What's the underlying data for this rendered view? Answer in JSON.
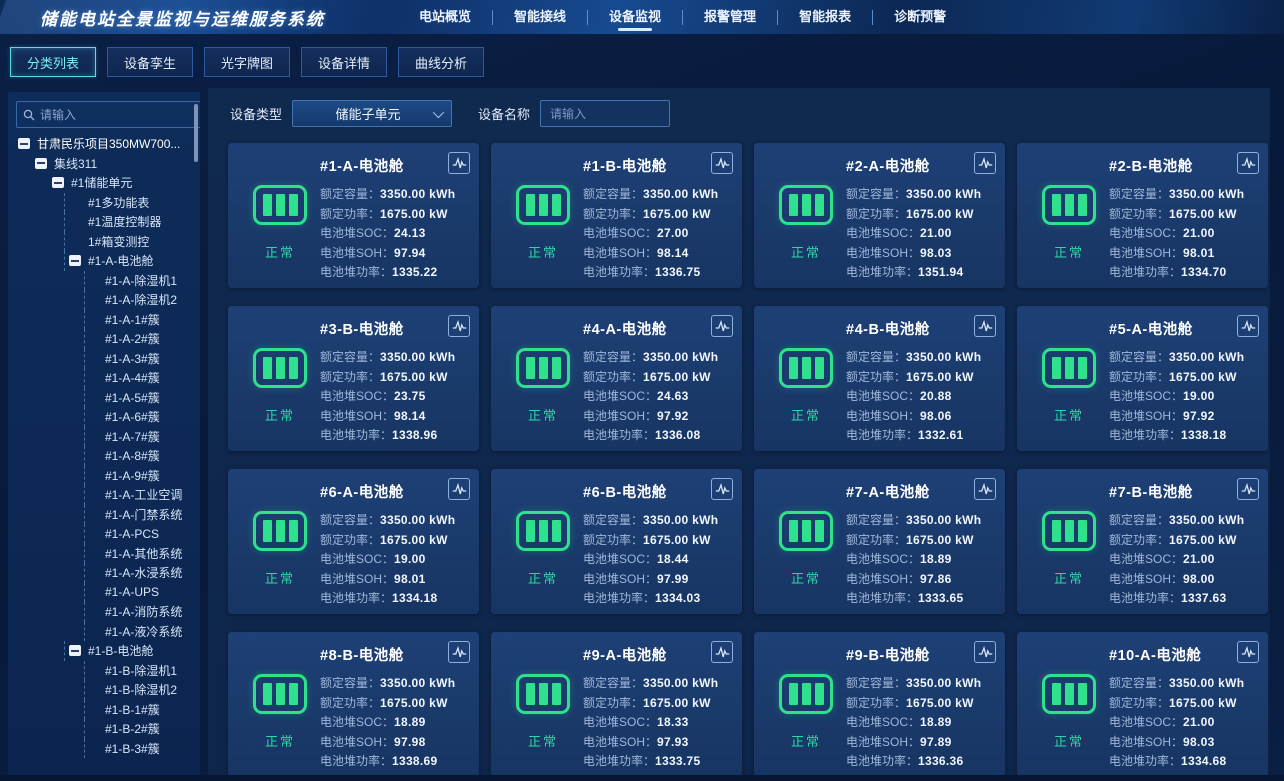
{
  "header": {
    "title": "储能电站全景监视与运维服务系统",
    "nav": [
      {
        "label": "电站概览",
        "active": false
      },
      {
        "label": "智能接线",
        "active": false
      },
      {
        "label": "设备监视",
        "active": true
      },
      {
        "label": "报警管理",
        "active": false
      },
      {
        "label": "智能报表",
        "active": false
      },
      {
        "label": "诊断预警",
        "active": false
      }
    ]
  },
  "tabs": [
    {
      "label": "分类列表",
      "active": true
    },
    {
      "label": "设备孪生",
      "active": false
    },
    {
      "label": "光字牌图",
      "active": false
    },
    {
      "label": "设备详情",
      "active": false
    },
    {
      "label": "曲线分析",
      "active": false
    }
  ],
  "sidebar": {
    "search_placeholder": "请输入",
    "tree": [
      {
        "label": "甘肃民乐项目350MW700...",
        "level": 0,
        "toggle": true
      },
      {
        "label": "集线311",
        "level": 1,
        "toggle": true
      },
      {
        "label": "#1储能单元",
        "level": 2,
        "toggle": true
      },
      {
        "label": "#1多功能表",
        "level": 3,
        "toggle": false
      },
      {
        "label": "#1温度控制器",
        "level": 3,
        "toggle": false
      },
      {
        "label": "1#箱变测控",
        "level": 3,
        "toggle": false
      },
      {
        "label": "#1-A-电池舱",
        "level": 3,
        "toggle": true
      },
      {
        "label": "#1-A-除湿机1",
        "level": 4,
        "toggle": false
      },
      {
        "label": "#1-A-除湿机2",
        "level": 4,
        "toggle": false
      },
      {
        "label": "#1-A-1#簇",
        "level": 4,
        "toggle": false
      },
      {
        "label": "#1-A-2#簇",
        "level": 4,
        "toggle": false
      },
      {
        "label": "#1-A-3#簇",
        "level": 4,
        "toggle": false
      },
      {
        "label": "#1-A-4#簇",
        "level": 4,
        "toggle": false
      },
      {
        "label": "#1-A-5#簇",
        "level": 4,
        "toggle": false
      },
      {
        "label": "#1-A-6#簇",
        "level": 4,
        "toggle": false
      },
      {
        "label": "#1-A-7#簇",
        "level": 4,
        "toggle": false
      },
      {
        "label": "#1-A-8#簇",
        "level": 4,
        "toggle": false
      },
      {
        "label": "#1-A-9#簇",
        "level": 4,
        "toggle": false
      },
      {
        "label": "#1-A-工业空调",
        "level": 4,
        "toggle": false
      },
      {
        "label": "#1-A-门禁系统",
        "level": 4,
        "toggle": false
      },
      {
        "label": "#1-A-PCS",
        "level": 4,
        "toggle": false
      },
      {
        "label": "#1-A-其他系统",
        "level": 4,
        "toggle": false
      },
      {
        "label": "#1-A-水浸系统",
        "level": 4,
        "toggle": false
      },
      {
        "label": "#1-A-UPS",
        "level": 4,
        "toggle": false
      },
      {
        "label": "#1-A-消防系统",
        "level": 4,
        "toggle": false
      },
      {
        "label": "#1-A-液冷系统",
        "level": 4,
        "toggle": false
      },
      {
        "label": "#1-B-电池舱",
        "level": 3,
        "toggle": true
      },
      {
        "label": "#1-B-除湿机1",
        "level": 4,
        "toggle": false
      },
      {
        "label": "#1-B-除湿机2",
        "level": 4,
        "toggle": false
      },
      {
        "label": "#1-B-1#簇",
        "level": 4,
        "toggle": false
      },
      {
        "label": "#1-B-2#簇",
        "level": 4,
        "toggle": false
      },
      {
        "label": "#1-B-3#簇",
        "level": 4,
        "toggle": false
      }
    ]
  },
  "filters": {
    "device_type_label": "设备类型",
    "device_type_value": "储能子单元",
    "device_name_label": "设备名称",
    "device_name_placeholder": "请输入"
  },
  "card_labels": {
    "capacity": "额定容量：",
    "rated_power": "额定功率：",
    "soc": "电池堆SOC：",
    "soh": "电池堆SOH：",
    "stack_power": "电池堆功率："
  },
  "cards": [
    {
      "title": "#1-A-电池舱",
      "capacity": "3350.00 kWh",
      "rated_power": "1675.00 kW",
      "soc": "24.13",
      "soh": "97.94",
      "stack_power": "1335.22",
      "status": "正常"
    },
    {
      "title": "#1-B-电池舱",
      "capacity": "3350.00 kWh",
      "rated_power": "1675.00 kW",
      "soc": "27.00",
      "soh": "98.14",
      "stack_power": "1336.75",
      "status": "正常"
    },
    {
      "title": "#2-A-电池舱",
      "capacity": "3350.00 kWh",
      "rated_power": "1675.00 kW",
      "soc": "21.00",
      "soh": "98.03",
      "stack_power": "1351.94",
      "status": "正常"
    },
    {
      "title": "#2-B-电池舱",
      "capacity": "3350.00 kWh",
      "rated_power": "1675.00 kW",
      "soc": "21.00",
      "soh": "98.01",
      "stack_power": "1334.70",
      "status": "正常"
    },
    {
      "title": "#3-B-电池舱",
      "capacity": "3350.00 kWh",
      "rated_power": "1675.00 kW",
      "soc": "23.75",
      "soh": "98.14",
      "stack_power": "1338.96",
      "status": "正常"
    },
    {
      "title": "#4-A-电池舱",
      "capacity": "3350.00 kWh",
      "rated_power": "1675.00 kW",
      "soc": "24.63",
      "soh": "97.92",
      "stack_power": "1336.08",
      "status": "正常"
    },
    {
      "title": "#4-B-电池舱",
      "capacity": "3350.00 kWh",
      "rated_power": "1675.00 kW",
      "soc": "20.88",
      "soh": "98.06",
      "stack_power": "1332.61",
      "status": "正常"
    },
    {
      "title": "#5-A-电池舱",
      "capacity": "3350.00 kWh",
      "rated_power": "1675.00 kW",
      "soc": "19.00",
      "soh": "97.92",
      "stack_power": "1338.18",
      "status": "正常"
    },
    {
      "title": "#6-A-电池舱",
      "capacity": "3350.00 kWh",
      "rated_power": "1675.00 kW",
      "soc": "19.00",
      "soh": "98.01",
      "stack_power": "1334.18",
      "status": "正常"
    },
    {
      "title": "#6-B-电池舱",
      "capacity": "3350.00 kWh",
      "rated_power": "1675.00 kW",
      "soc": "18.44",
      "soh": "97.99",
      "stack_power": "1334.03",
      "status": "正常"
    },
    {
      "title": "#7-A-电池舱",
      "capacity": "3350.00 kWh",
      "rated_power": "1675.00 kW",
      "soc": "18.89",
      "soh": "97.86",
      "stack_power": "1333.65",
      "status": "正常"
    },
    {
      "title": "#7-B-电池舱",
      "capacity": "3350.00 kWh",
      "rated_power": "1675.00 kW",
      "soc": "21.00",
      "soh": "98.00",
      "stack_power": "1337.63",
      "status": "正常"
    },
    {
      "title": "#8-B-电池舱",
      "capacity": "3350.00 kWh",
      "rated_power": "1675.00 kW",
      "soc": "18.89",
      "soh": "97.98",
      "stack_power": "1338.69",
      "status": "正常"
    },
    {
      "title": "#9-A-电池舱",
      "capacity": "3350.00 kWh",
      "rated_power": "1675.00 kW",
      "soc": "18.33",
      "soh": "97.93",
      "stack_power": "1333.75",
      "status": "正常"
    },
    {
      "title": "#9-B-电池舱",
      "capacity": "3350.00 kWh",
      "rated_power": "1675.00 kW",
      "soc": "18.89",
      "soh": "97.89",
      "stack_power": "1336.36",
      "status": "正常"
    },
    {
      "title": "#10-A-电池舱",
      "capacity": "3350.00 kWh",
      "rated_power": "1675.00 kW",
      "soc": "21.00",
      "soh": "98.03",
      "stack_power": "1334.68",
      "status": "正常"
    }
  ],
  "colors": {
    "battery_green": "#2fe08c",
    "status_green": "#2fd6a5",
    "accent_cyan": "#58dbe4",
    "card_bg": "#1c3c6e",
    "header_bg": "#123a72"
  }
}
